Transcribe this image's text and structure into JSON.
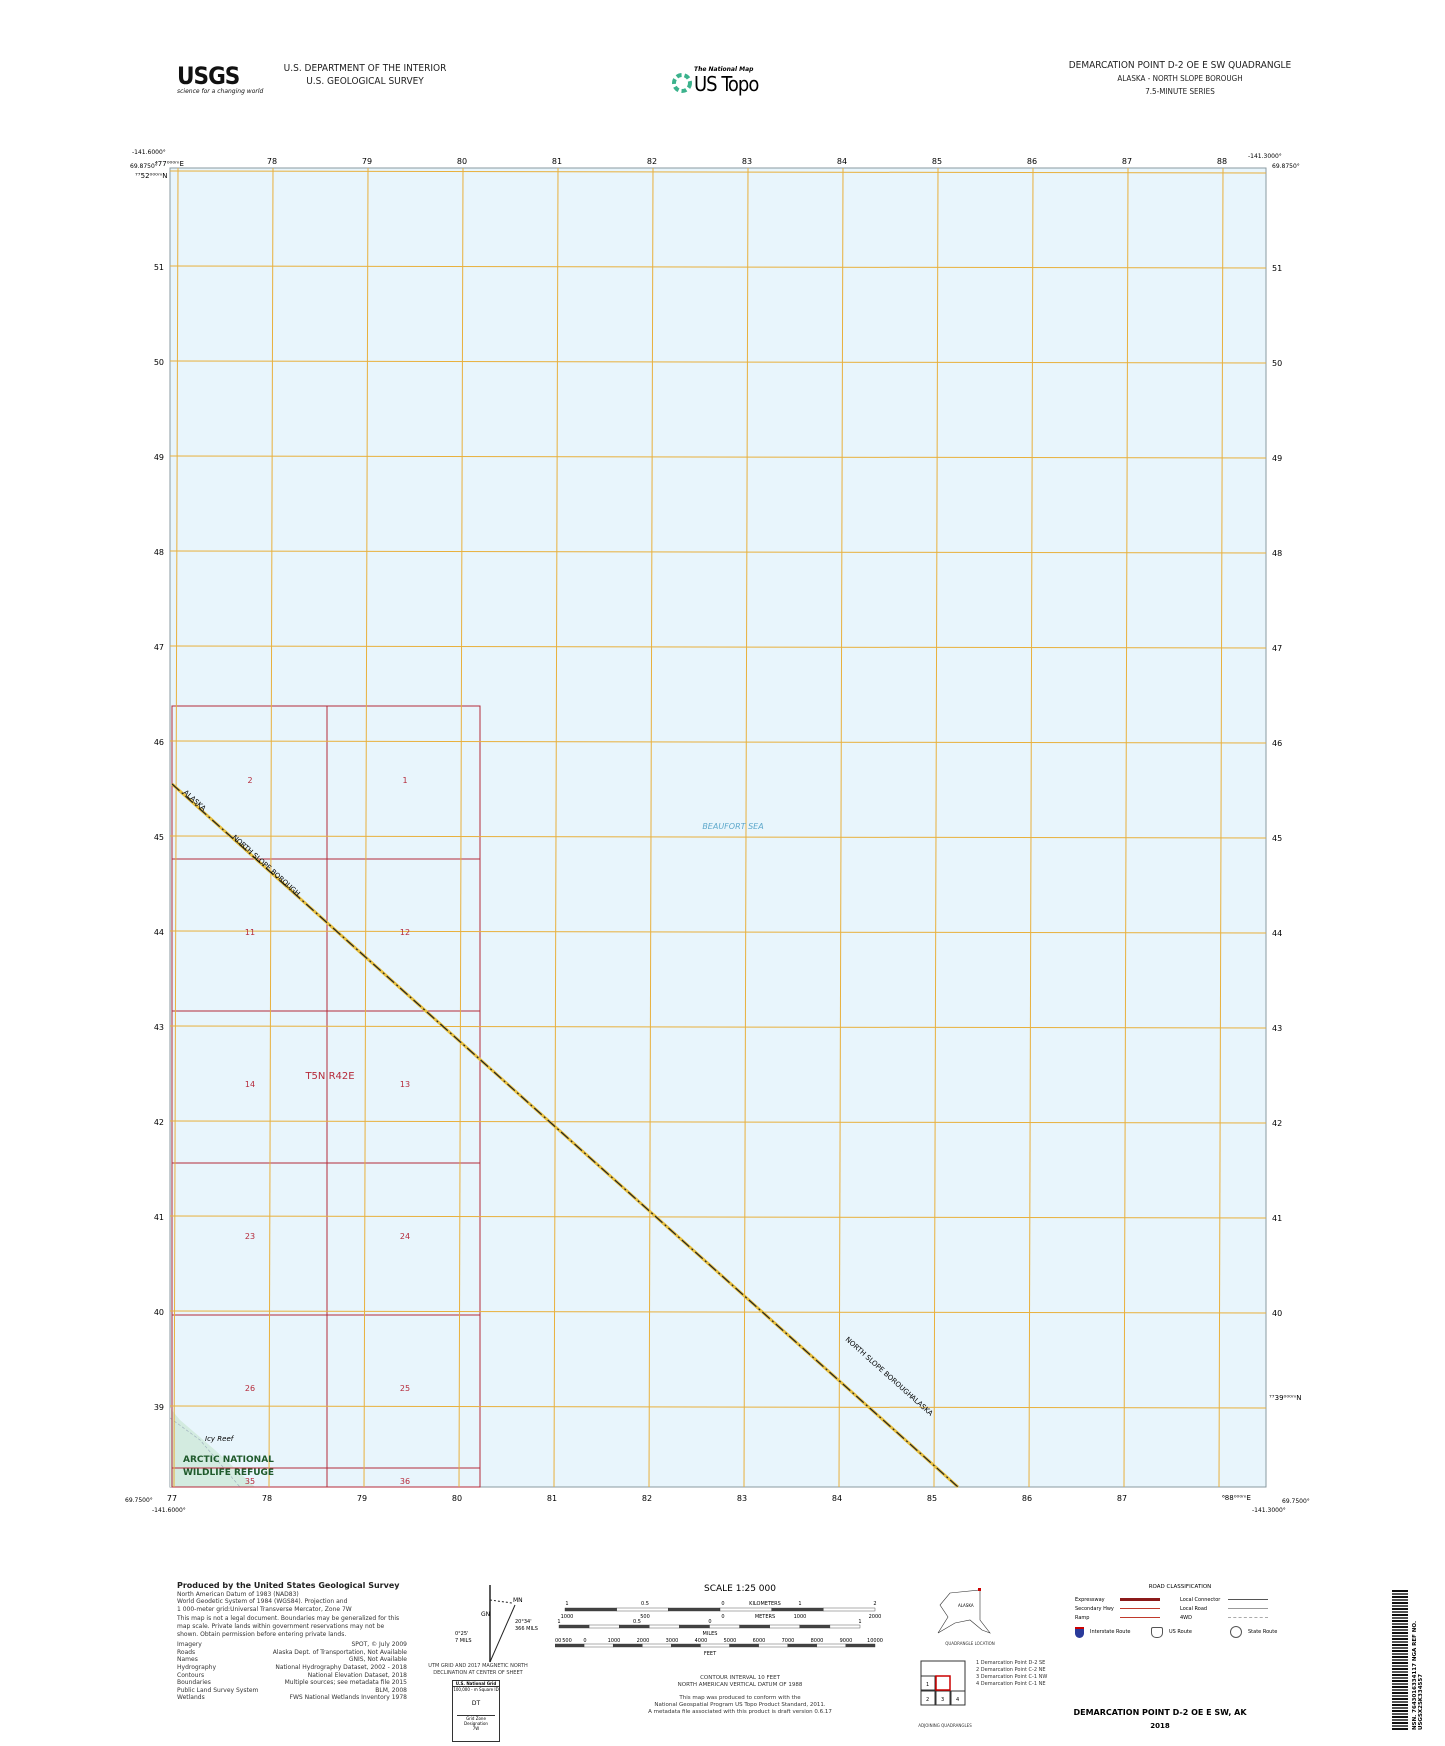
{
  "header": {
    "agency_logo": "USGS",
    "agency_tagline": "science for a changing world",
    "department": "U.S. DEPARTMENT OF THE INTERIOR",
    "survey": "U.S. GEOLOGICAL SURVEY",
    "product_small": "The National Map",
    "product": "US Topo",
    "quad_title": "DEMARCATION POINT D-2 OE E SW QUADRANGLE",
    "state_county": "ALASKA - NORTH SLOPE BOROUGH",
    "series": "7.5-MINUTE SERIES"
  },
  "map": {
    "corners": {
      "top_left_lon": "-141.6000°",
      "top_left_lat": "69.8750°",
      "top_right_lon": "-141.3000°",
      "top_right_lat": "69.8750°",
      "bottom_left_lon": "-141.6000°",
      "bottom_left_lat": "69.7500°",
      "bottom_right_lon": "-141.3000°",
      "bottom_right_lat": "69.7500°"
    },
    "top_first_easting": "⁴77⁰⁰⁰ᵐE",
    "left_first_northing": "⁷⁷52⁰⁰⁰ᵐN",
    "right_last_northing": "⁷⁷39⁰⁰⁰ᵐN",
    "bottom_last_easting": "⁶88⁰⁰⁰ᵐE",
    "eastings": [
      "77",
      "78",
      "79",
      "80",
      "81",
      "82",
      "83",
      "84",
      "85",
      "86",
      "87",
      "88"
    ],
    "northings": [
      "52",
      "51",
      "50",
      "49",
      "48",
      "47",
      "46",
      "45",
      "44",
      "43",
      "42",
      "41",
      "40",
      "39"
    ],
    "sections": [
      [
        "2",
        "1"
      ],
      [
        "11",
        "12"
      ],
      [
        "14",
        "13"
      ],
      [
        "23",
        "24"
      ],
      [
        "26",
        "25"
      ],
      [
        "35",
        "36"
      ]
    ],
    "township": "T5N R42E",
    "water_label": "BEAUFORT SEA",
    "reef_label": "Icy Reef",
    "refuge_label_1": "ARCTIC NATIONAL",
    "refuge_label_2": "WILDLIFE REFUGE",
    "boundary_label_1": "ALASKA",
    "boundary_label_2": "NORTH SLOPE BOROUGH",
    "colors": {
      "water": "#e8f5fc",
      "grid": "#e8b03c",
      "plss": "#b52a3a",
      "refuge": "#d3ebe0"
    }
  },
  "footer": {
    "credits_title": "Produced by the United States Geological Survey",
    "credits_lines": [
      "North American Datum of 1983 (NAD83)",
      "World Geodetic System of 1984 (WGS84). Projection and",
      "1 000-meter grid:Universal Transverse Mercator, Zone 7W"
    ],
    "disclaimer": "This map is not a legal document. Boundaries may be generalized for this map scale. Private lands within government reservations may not be shown. Obtain permission before entering private lands.",
    "sources": [
      [
        "Imagery",
        "SPOT, © July 2009"
      ],
      [
        "Roads",
        "Alaska Dept. of Transportation, Not Available"
      ],
      [
        "Names",
        "GNIS, Not Available"
      ],
      [
        "Hydrography",
        "National Hydrography Dataset, 2002 - 2018"
      ],
      [
        "Contours",
        "National Elevation Dataset, 2018"
      ],
      [
        "Boundaries",
        "Multiple sources; see metadata file 2015"
      ],
      [
        "Public Land Survey System",
        "BLM, 2008"
      ],
      [
        "Wetlands",
        "FWS National Wetlands Inventory 1978"
      ]
    ],
    "declination": {
      "gn": "GN",
      "mn": "MN",
      "left_angle": "0°25'",
      "left_mils": "7 MILS",
      "right_angle": "20°34'",
      "right_mils": "366 MILS",
      "caption": "UTM GRID AND 2017 MAGNETIC NORTH DECLINATION AT CENTER OF SHEET"
    },
    "usng": {
      "title": "U.S. National Grid",
      "sub": "100,000 - m Square ID",
      "id": "DT",
      "gzd_label": "Grid Zone Designation",
      "gzd": "7W"
    },
    "scale": {
      "title": "SCALE 1:25 000",
      "km_labels": [
        "1",
        "0.5",
        "0",
        "1",
        "2"
      ],
      "km_unit": "KILOMETERS",
      "m_labels": [
        "1000",
        "500",
        "0",
        "1000",
        "2000"
      ],
      "m_unit": "METERS",
      "mi_labels": [
        "1",
        "0.5",
        "0",
        "1"
      ],
      "mi_unit": "MILES",
      "ft_labels": [
        "1000",
        "500",
        "0",
        "1000",
        "2000",
        "3000",
        "4000",
        "5000",
        "6000",
        "7000",
        "8000",
        "9000",
        "10000"
      ],
      "ft_unit": "FEET"
    },
    "contour": "CONTOUR INTERVAL 10 FEET",
    "vdatum": "NORTH AMERICAN VERTICAL DATUM OF 1988",
    "standard": [
      "This map was produced to conform with the",
      "National Geospatial Program US Topo Product Standard, 2011.",
      "A metadata file associated with this product is draft version 0.6.17"
    ],
    "location": {
      "state": "ALASKA",
      "caption": "QUADRANGLE LOCATION"
    },
    "adjoining": {
      "caption": "ADJOINING QUADRANGLES",
      "list": [
        "1 Demarcation Point D-2 SE",
        "2 Demarcation Point C-2 NE",
        "3 Demarcation Point C-1 NW",
        "4 Demarcation Point C-1 NE"
      ],
      "cells": [
        "1",
        "2",
        "3",
        "4"
      ]
    },
    "roads": {
      "title": "ROAD CLASSIFICATION",
      "left": [
        "Expressway",
        "Secondary Hwy",
        "Ramp"
      ],
      "right": [
        "Local Connector",
        "Local Road",
        "4WD"
      ],
      "routes": [
        "Interstate Route",
        "US Route",
        "State Route"
      ]
    },
    "bottom_title": "DEMARCATION POINT D-2 OE E SW,  AK",
    "year": "2018",
    "barcode_text": "NSN. 7643016334117  NGA REF NO. USGSX25K334557"
  }
}
